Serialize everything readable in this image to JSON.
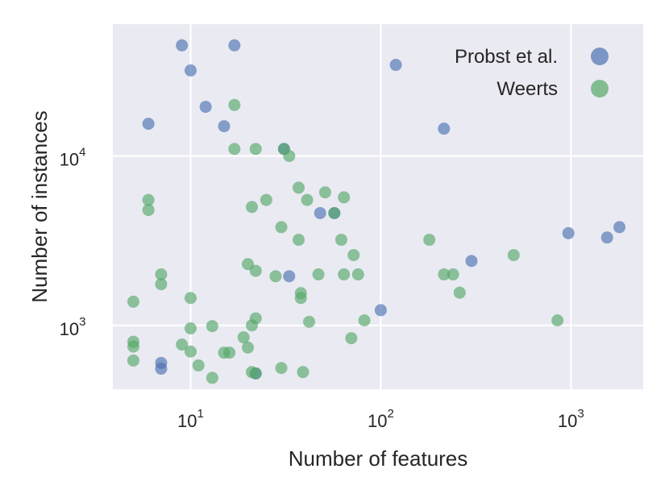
{
  "chart_data": {
    "type": "scatter",
    "xlabel": "Number of features",
    "ylabel": "Number of instances",
    "x_scale": "log",
    "y_scale": "log",
    "xlim": [
      3.9,
      2400
    ],
    "ylim": [
      420,
      60000
    ],
    "x_ticks": [
      {
        "value": 10,
        "base": "10",
        "exp": "1"
      },
      {
        "value": 100,
        "base": "10",
        "exp": "2"
      },
      {
        "value": 1000,
        "base": "10",
        "exp": "3"
      }
    ],
    "y_ticks": [
      {
        "value": 1000,
        "base": "10",
        "exp": "3"
      },
      {
        "value": 10000,
        "base": "10",
        "exp": "4"
      }
    ],
    "grid": true,
    "background_color": "#eaeaf2",
    "legend_position": "top-right",
    "series": [
      {
        "name": "Probst et al.",
        "color": "#4c72b0",
        "points": [
          {
            "x": 9,
            "y": 45000
          },
          {
            "x": 17,
            "y": 45000
          },
          {
            "x": 10,
            "y": 32000
          },
          {
            "x": 12,
            "y": 19500
          },
          {
            "x": 6,
            "y": 15500
          },
          {
            "x": 15,
            "y": 15000
          },
          {
            "x": 120,
            "y": 34500
          },
          {
            "x": 215,
            "y": 14500
          },
          {
            "x": 31,
            "y": 11000
          },
          {
            "x": 48,
            "y": 4600
          },
          {
            "x": 57,
            "y": 4600
          },
          {
            "x": 33,
            "y": 1950
          },
          {
            "x": 100,
            "y": 1230
          },
          {
            "x": 300,
            "y": 2400
          },
          {
            "x": 970,
            "y": 3500
          },
          {
            "x": 1550,
            "y": 3300
          },
          {
            "x": 1800,
            "y": 3800
          },
          {
            "x": 7,
            "y": 600
          },
          {
            "x": 7,
            "y": 555
          },
          {
            "x": 22,
            "y": 520
          }
        ]
      },
      {
        "name": "Weerts",
        "color": "#55a868",
        "points": [
          {
            "x": 17,
            "y": 20000
          },
          {
            "x": 17,
            "y": 11000
          },
          {
            "x": 22,
            "y": 11000
          },
          {
            "x": 31,
            "y": 11000
          },
          {
            "x": 33,
            "y": 10000
          },
          {
            "x": 6,
            "y": 5500
          },
          {
            "x": 6,
            "y": 4800
          },
          {
            "x": 21,
            "y": 5000
          },
          {
            "x": 25,
            "y": 5500
          },
          {
            "x": 37,
            "y": 6500
          },
          {
            "x": 41,
            "y": 5500
          },
          {
            "x": 51,
            "y": 6100
          },
          {
            "x": 64,
            "y": 5700
          },
          {
            "x": 57,
            "y": 4600
          },
          {
            "x": 30,
            "y": 3800
          },
          {
            "x": 37,
            "y": 3200
          },
          {
            "x": 62,
            "y": 3200
          },
          {
            "x": 72,
            "y": 2600
          },
          {
            "x": 180,
            "y": 3200
          },
          {
            "x": 500,
            "y": 2600
          },
          {
            "x": 7,
            "y": 2000
          },
          {
            "x": 7,
            "y": 1750
          },
          {
            "x": 20,
            "y": 2300
          },
          {
            "x": 22,
            "y": 2100
          },
          {
            "x": 28,
            "y": 1950
          },
          {
            "x": 47,
            "y": 2000
          },
          {
            "x": 64,
            "y": 2000
          },
          {
            "x": 76,
            "y": 2000
          },
          {
            "x": 215,
            "y": 2000
          },
          {
            "x": 240,
            "y": 2000
          },
          {
            "x": 38,
            "y": 1550
          },
          {
            "x": 38,
            "y": 1450
          },
          {
            "x": 260,
            "y": 1560
          },
          {
            "x": 5,
            "y": 1380
          },
          {
            "x": 10,
            "y": 1450
          },
          {
            "x": 22,
            "y": 1100
          },
          {
            "x": 42,
            "y": 1050
          },
          {
            "x": 82,
            "y": 1070
          },
          {
            "x": 850,
            "y": 1070
          },
          {
            "x": 21,
            "y": 1000
          },
          {
            "x": 10,
            "y": 960
          },
          {
            "x": 13,
            "y": 990
          },
          {
            "x": 19,
            "y": 850
          },
          {
            "x": 70,
            "y": 840
          },
          {
            "x": 5,
            "y": 800
          },
          {
            "x": 5,
            "y": 750
          },
          {
            "x": 9,
            "y": 770
          },
          {
            "x": 20,
            "y": 740
          },
          {
            "x": 10,
            "y": 700
          },
          {
            "x": 15,
            "y": 690
          },
          {
            "x": 16,
            "y": 690
          },
          {
            "x": 5,
            "y": 620
          },
          {
            "x": 11,
            "y": 580
          },
          {
            "x": 21,
            "y": 530
          },
          {
            "x": 30,
            "y": 560
          },
          {
            "x": 39,
            "y": 530
          },
          {
            "x": 13,
            "y": 490
          },
          {
            "x": 22,
            "y": 520
          }
        ]
      }
    ]
  }
}
